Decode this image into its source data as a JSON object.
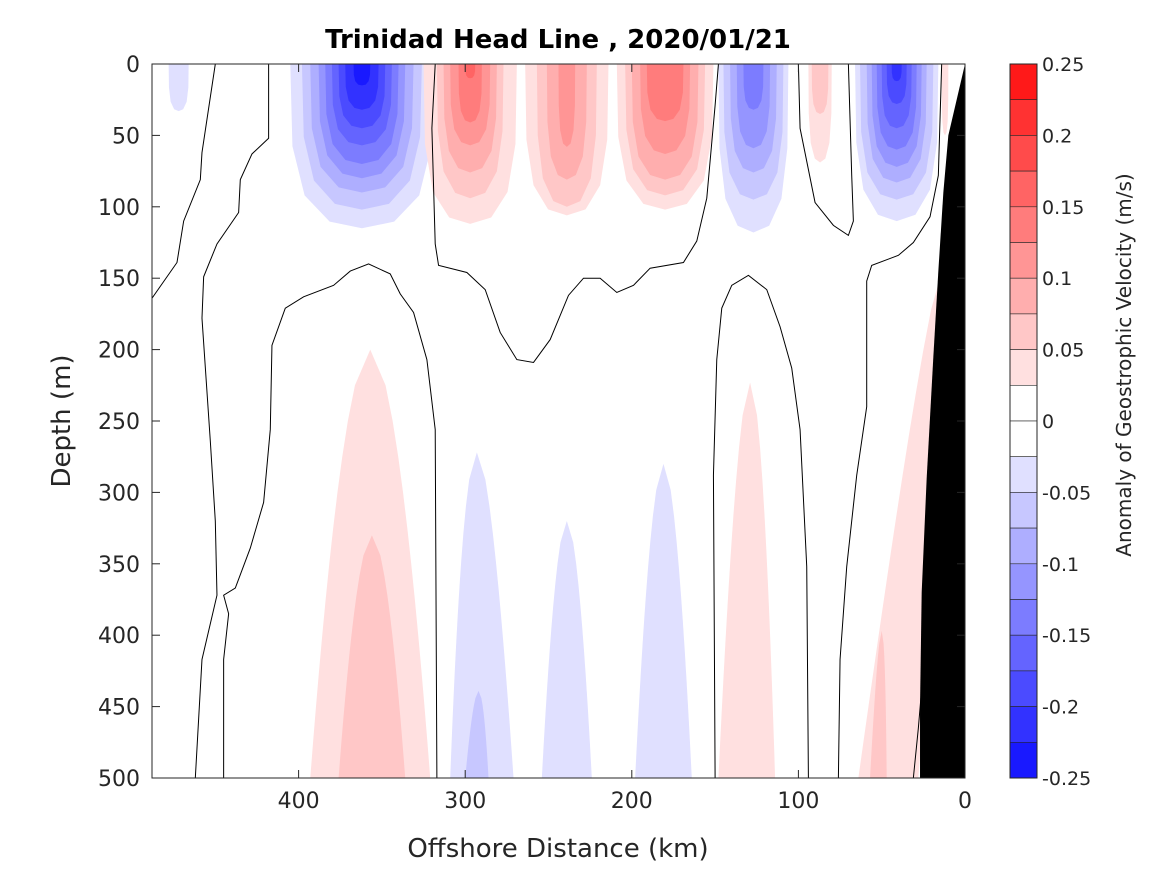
{
  "chart_data": {
    "type": "contour",
    "title": "Trinidad Head Line , 2020/01/21",
    "xlabel": "Offshore Distance (km)",
    "ylabel": "Depth (m)",
    "colorbar_label": "Anomaly of Geostrophic Velocity (m/s)",
    "xlim": [
      0,
      488
    ],
    "x_reversed": true,
    "ylim": [
      0,
      500
    ],
    "y_reversed": true,
    "x_ticks": [
      400,
      300,
      200,
      100,
      0
    ],
    "y_ticks": [
      0,
      50,
      100,
      150,
      200,
      250,
      300,
      350,
      400,
      450,
      500
    ],
    "colorbar_range": [
      -0.25,
      0.25
    ],
    "contour_interval": 0.025,
    "colorbar_ticks": [
      "0.25",
      "0.2",
      "0.15",
      "0.1",
      "0.05",
      "0",
      "-0.05",
      "-0.1",
      "-0.15",
      "-0.2",
      "-0.25"
    ],
    "colors": {
      "positive": "#ff0000",
      "negative": "#0000ff",
      "zero": "#ffffff",
      "bathymetry": "#000000"
    },
    "surface_features": [
      {
        "name": "blue-core-360km",
        "center_km": 362,
        "levels": [
          [
            -0.025,
            43,
            115
          ],
          [
            -0.05,
            36,
            102
          ],
          [
            -0.075,
            31,
            90
          ],
          [
            -0.1,
            26,
            80
          ],
          [
            -0.125,
            22,
            70
          ],
          [
            -0.15,
            18,
            57
          ],
          [
            -0.175,
            14,
            45
          ],
          [
            -0.2,
            10,
            32
          ],
          [
            -0.225,
            5,
            15
          ]
        ]
      },
      {
        "name": "red-core-297km",
        "center_km": 297,
        "levels": [
          [
            0.025,
            28,
            112
          ],
          [
            0.05,
            20,
            94
          ],
          [
            0.075,
            16,
            76
          ],
          [
            0.1,
            12,
            57
          ],
          [
            0.125,
            7,
            41
          ],
          [
            0.15,
            3,
            10
          ]
        ]
      },
      {
        "name": "red-core-239km",
        "center_km": 239,
        "levels": [
          [
            0.025,
            25,
            106
          ],
          [
            0.05,
            18,
            100
          ],
          [
            0.075,
            12,
            81
          ],
          [
            0.1,
            5,
            58
          ]
        ]
      },
      {
        "name": "red-core-180km",
        "center_km": 180,
        "levels": [
          [
            0.025,
            29,
            102
          ],
          [
            0.05,
            24,
            92
          ],
          [
            0.075,
            20,
            81
          ],
          [
            0.1,
            15,
            63
          ],
          [
            0.125,
            11,
            40
          ]
        ]
      },
      {
        "name": "blue-core-127km",
        "center_km": 127,
        "levels": [
          [
            -0.025,
            21,
            118
          ],
          [
            -0.05,
            18,
            95
          ],
          [
            -0.075,
            14,
            76
          ],
          [
            -0.1,
            10,
            59
          ],
          [
            -0.125,
            6,
            32
          ]
        ]
      },
      {
        "name": "red-core-87km",
        "center_km": 87,
        "levels": [
          [
            0.025,
            7,
            69
          ],
          [
            0.05,
            5,
            35
          ]
        ]
      },
      {
        "name": "blue-core-41km",
        "center_km": 41,
        "levels": [
          [
            -0.025,
            25,
            110
          ],
          [
            -0.05,
            22,
            95
          ],
          [
            -0.075,
            18,
            83
          ],
          [
            -0.1,
            15,
            72
          ],
          [
            -0.125,
            12,
            60
          ],
          [
            -0.15,
            9,
            45
          ],
          [
            -0.175,
            6,
            28
          ],
          [
            -0.2,
            3,
            12
          ]
        ]
      },
      {
        "name": "blue-core-472km",
        "center_km": 472,
        "levels": [
          [
            -0.025,
            6,
            33
          ]
        ]
      },
      {
        "name": "red-core-12km",
        "center_km": 12,
        "levels": [
          [
            0.025,
            2,
            50
          ]
        ]
      }
    ],
    "deep_features": [
      {
        "name": "red-deep-357km",
        "value": 0.025,
        "tip_km": 357,
        "tip_m": 200,
        "bottom_center_km": 357,
        "half_width_km": 36
      },
      {
        "name": "red-deep-357km-inner",
        "value": 0.05,
        "tip_km": 356,
        "tip_m": 330,
        "bottom_center_km": 356,
        "half_width_km": 20
      },
      {
        "name": "blue-deep-293km",
        "value": -0.025,
        "tip_km": 293,
        "tip_m": 272,
        "bottom_center_km": 290,
        "half_width_km": 19
      },
      {
        "name": "blue-deep-293km-inner",
        "value": -0.05,
        "tip_km": 292,
        "tip_m": 439,
        "bottom_center_km": 293,
        "half_width_km": 7
      },
      {
        "name": "blue-deep-239km",
        "value": -0.025,
        "tip_km": 239,
        "tip_m": 320,
        "bottom_center_km": 239,
        "half_width_km": 15
      },
      {
        "name": "blue-deep-181km",
        "value": -0.025,
        "tip_km": 181,
        "tip_m": 280,
        "bottom_center_km": 181,
        "half_width_km": 17
      },
      {
        "name": "red-deep-129km",
        "value": 0.025,
        "tip_km": 129,
        "tip_m": 223,
        "bottom_center_km": 131,
        "half_width_km": 17
      },
      {
        "name": "red-deep-coastal",
        "value": 0.025,
        "tip_km": 13,
        "tip_m": 142,
        "bottom_center_km": 46,
        "half_width_km": 18
      },
      {
        "name": "red-deep-coastal-inner",
        "value": 0.05,
        "tip_km": 50,
        "tip_m": 397,
        "bottom_center_km": 52,
        "half_width_km": 5
      }
    ],
    "zero_contours": [
      [
        [
          450,
          0
        ],
        [
          458,
          62
        ],
        [
          459,
          81
        ],
        [
          469,
          110
        ],
        [
          473,
          139
        ],
        [
          488,
          164
        ]
      ],
      [
        [
          418,
          0
        ],
        [
          418,
          52
        ],
        [
          428,
          63
        ],
        [
          435,
          81
        ],
        [
          436,
          104
        ],
        [
          449,
          126
        ],
        [
          457,
          149
        ],
        [
          458,
          178
        ],
        [
          453,
          264
        ],
        [
          450,
          320
        ],
        [
          449,
          372
        ],
        [
          458,
          417
        ],
        [
          462,
          500
        ]
      ],
      [
        [
          445,
          500
        ],
        [
          445,
          417
        ],
        [
          442,
          385
        ],
        [
          445,
          372
        ],
        [
          438,
          367
        ],
        [
          429,
          339
        ],
        [
          421,
          307
        ],
        [
          417,
          256
        ],
        [
          416,
          197
        ],
        [
          408,
          171
        ],
        [
          397,
          163
        ],
        [
          379,
          155
        ],
        [
          369,
          145
        ],
        [
          358,
          140
        ],
        [
          345,
          147
        ],
        [
          339,
          161
        ],
        [
          331,
          174
        ],
        [
          323,
          207
        ],
        [
          318,
          256
        ],
        [
          317,
          500
        ]
      ],
      [
        [
          318,
          0
        ],
        [
          320,
          45
        ],
        [
          318,
          126
        ],
        [
          316,
          141
        ],
        [
          299,
          146
        ],
        [
          288,
          158
        ],
        [
          279,
          188
        ],
        [
          269,
          207
        ],
        [
          259,
          209
        ],
        [
          249,
          193
        ],
        [
          238,
          162
        ],
        [
          229,
          150
        ],
        [
          219,
          150
        ],
        [
          209,
          160
        ],
        [
          199,
          155
        ],
        [
          189,
          143
        ],
        [
          169,
          139
        ],
        [
          161,
          124
        ],
        [
          155,
          94
        ],
        [
          150,
          29
        ],
        [
          148,
          0
        ]
      ],
      [
        [
          150,
          500
        ],
        [
          151,
          288
        ],
        [
          149,
          207
        ],
        [
          146,
          171
        ],
        [
          140,
          155
        ],
        [
          130,
          148
        ],
        [
          119,
          158
        ],
        [
          111,
          184
        ],
        [
          104,
          213
        ],
        [
          99,
          256
        ],
        [
          95,
          352
        ],
        [
          94,
          500
        ]
      ],
      [
        [
          100,
          0
        ],
        [
          99,
          45
        ],
        [
          90,
          97
        ],
        [
          79,
          113
        ],
        [
          70,
          120
        ],
        [
          67,
          110
        ],
        [
          68,
          78
        ],
        [
          70,
          0
        ]
      ],
      [
        [
          14,
          0
        ],
        [
          16,
          78
        ],
        [
          21,
          107
        ],
        [
          31,
          125
        ],
        [
          40,
          134
        ],
        [
          56,
          141
        ],
        [
          59,
          152
        ],
        [
          59,
          240
        ],
        [
          65,
          288
        ],
        [
          71,
          352
        ],
        [
          75,
          417
        ],
        [
          76,
          500
        ]
      ],
      [
        [
          31,
          500
        ],
        [
          28,
          465
        ],
        [
          24,
          410
        ]
      ]
    ],
    "bathymetry": [
      [
        0,
        0
      ],
      [
        10,
        50
      ],
      [
        13,
        90
      ],
      [
        16,
        145
      ],
      [
        19,
        205
      ],
      [
        23,
        290
      ],
      [
        26,
        370
      ],
      [
        27,
        450
      ],
      [
        27,
        500
      ],
      [
        0,
        500
      ]
    ]
  }
}
